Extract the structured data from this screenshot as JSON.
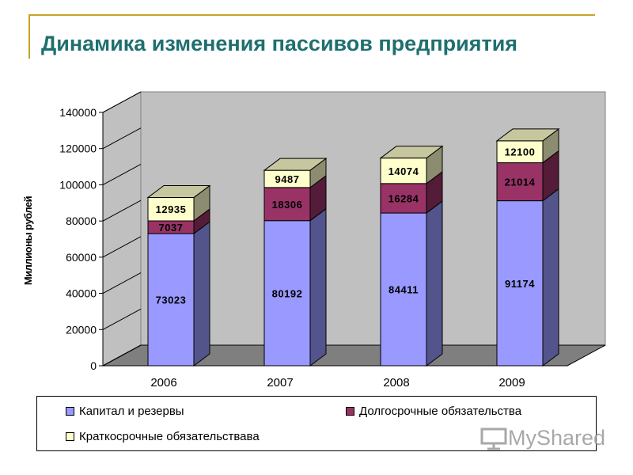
{
  "title": "Динамика изменения пассивов предприятия",
  "chart_data": {
    "type": "bar",
    "stacked": true,
    "three_d": true,
    "categories": [
      "2006",
      "2007",
      "2008",
      "2009"
    ],
    "series": [
      {
        "name": "Капитал и резервы",
        "values": [
          73023,
          80192,
          84411,
          91174
        ],
        "color": "#9999ff"
      },
      {
        "name": "Долгосрочные обязательства",
        "values": [
          7037,
          18306,
          16284,
          21014
        ],
        "color": "#993366"
      },
      {
        "name": "Краткосрочные обязательствава",
        "values": [
          12935,
          9487,
          14074,
          12100
        ],
        "color": "#ffffcc"
      }
    ],
    "ylabel": "Миллионы рублей",
    "xlabel": "",
    "ylim": [
      0,
      140000
    ],
    "yticks": [
      "0",
      "20000",
      "40000",
      "60000",
      "80000",
      "100000",
      "120000",
      "140000"
    ],
    "grid": false,
    "legend_position": "bottom",
    "wall_color": "#c0c0c0",
    "floor_color": "#7f7f7f"
  },
  "legend": {
    "items": [
      {
        "label": "Капитал и резервы",
        "color": "#9999ff"
      },
      {
        "label": "Долгосрочные обязательства",
        "color": "#993366"
      },
      {
        "label": "Краткосрочные обязательствава",
        "color": "#ffffcc"
      }
    ]
  },
  "watermark": {
    "text": "MyShared",
    "icon": "presentation-board-icon"
  }
}
